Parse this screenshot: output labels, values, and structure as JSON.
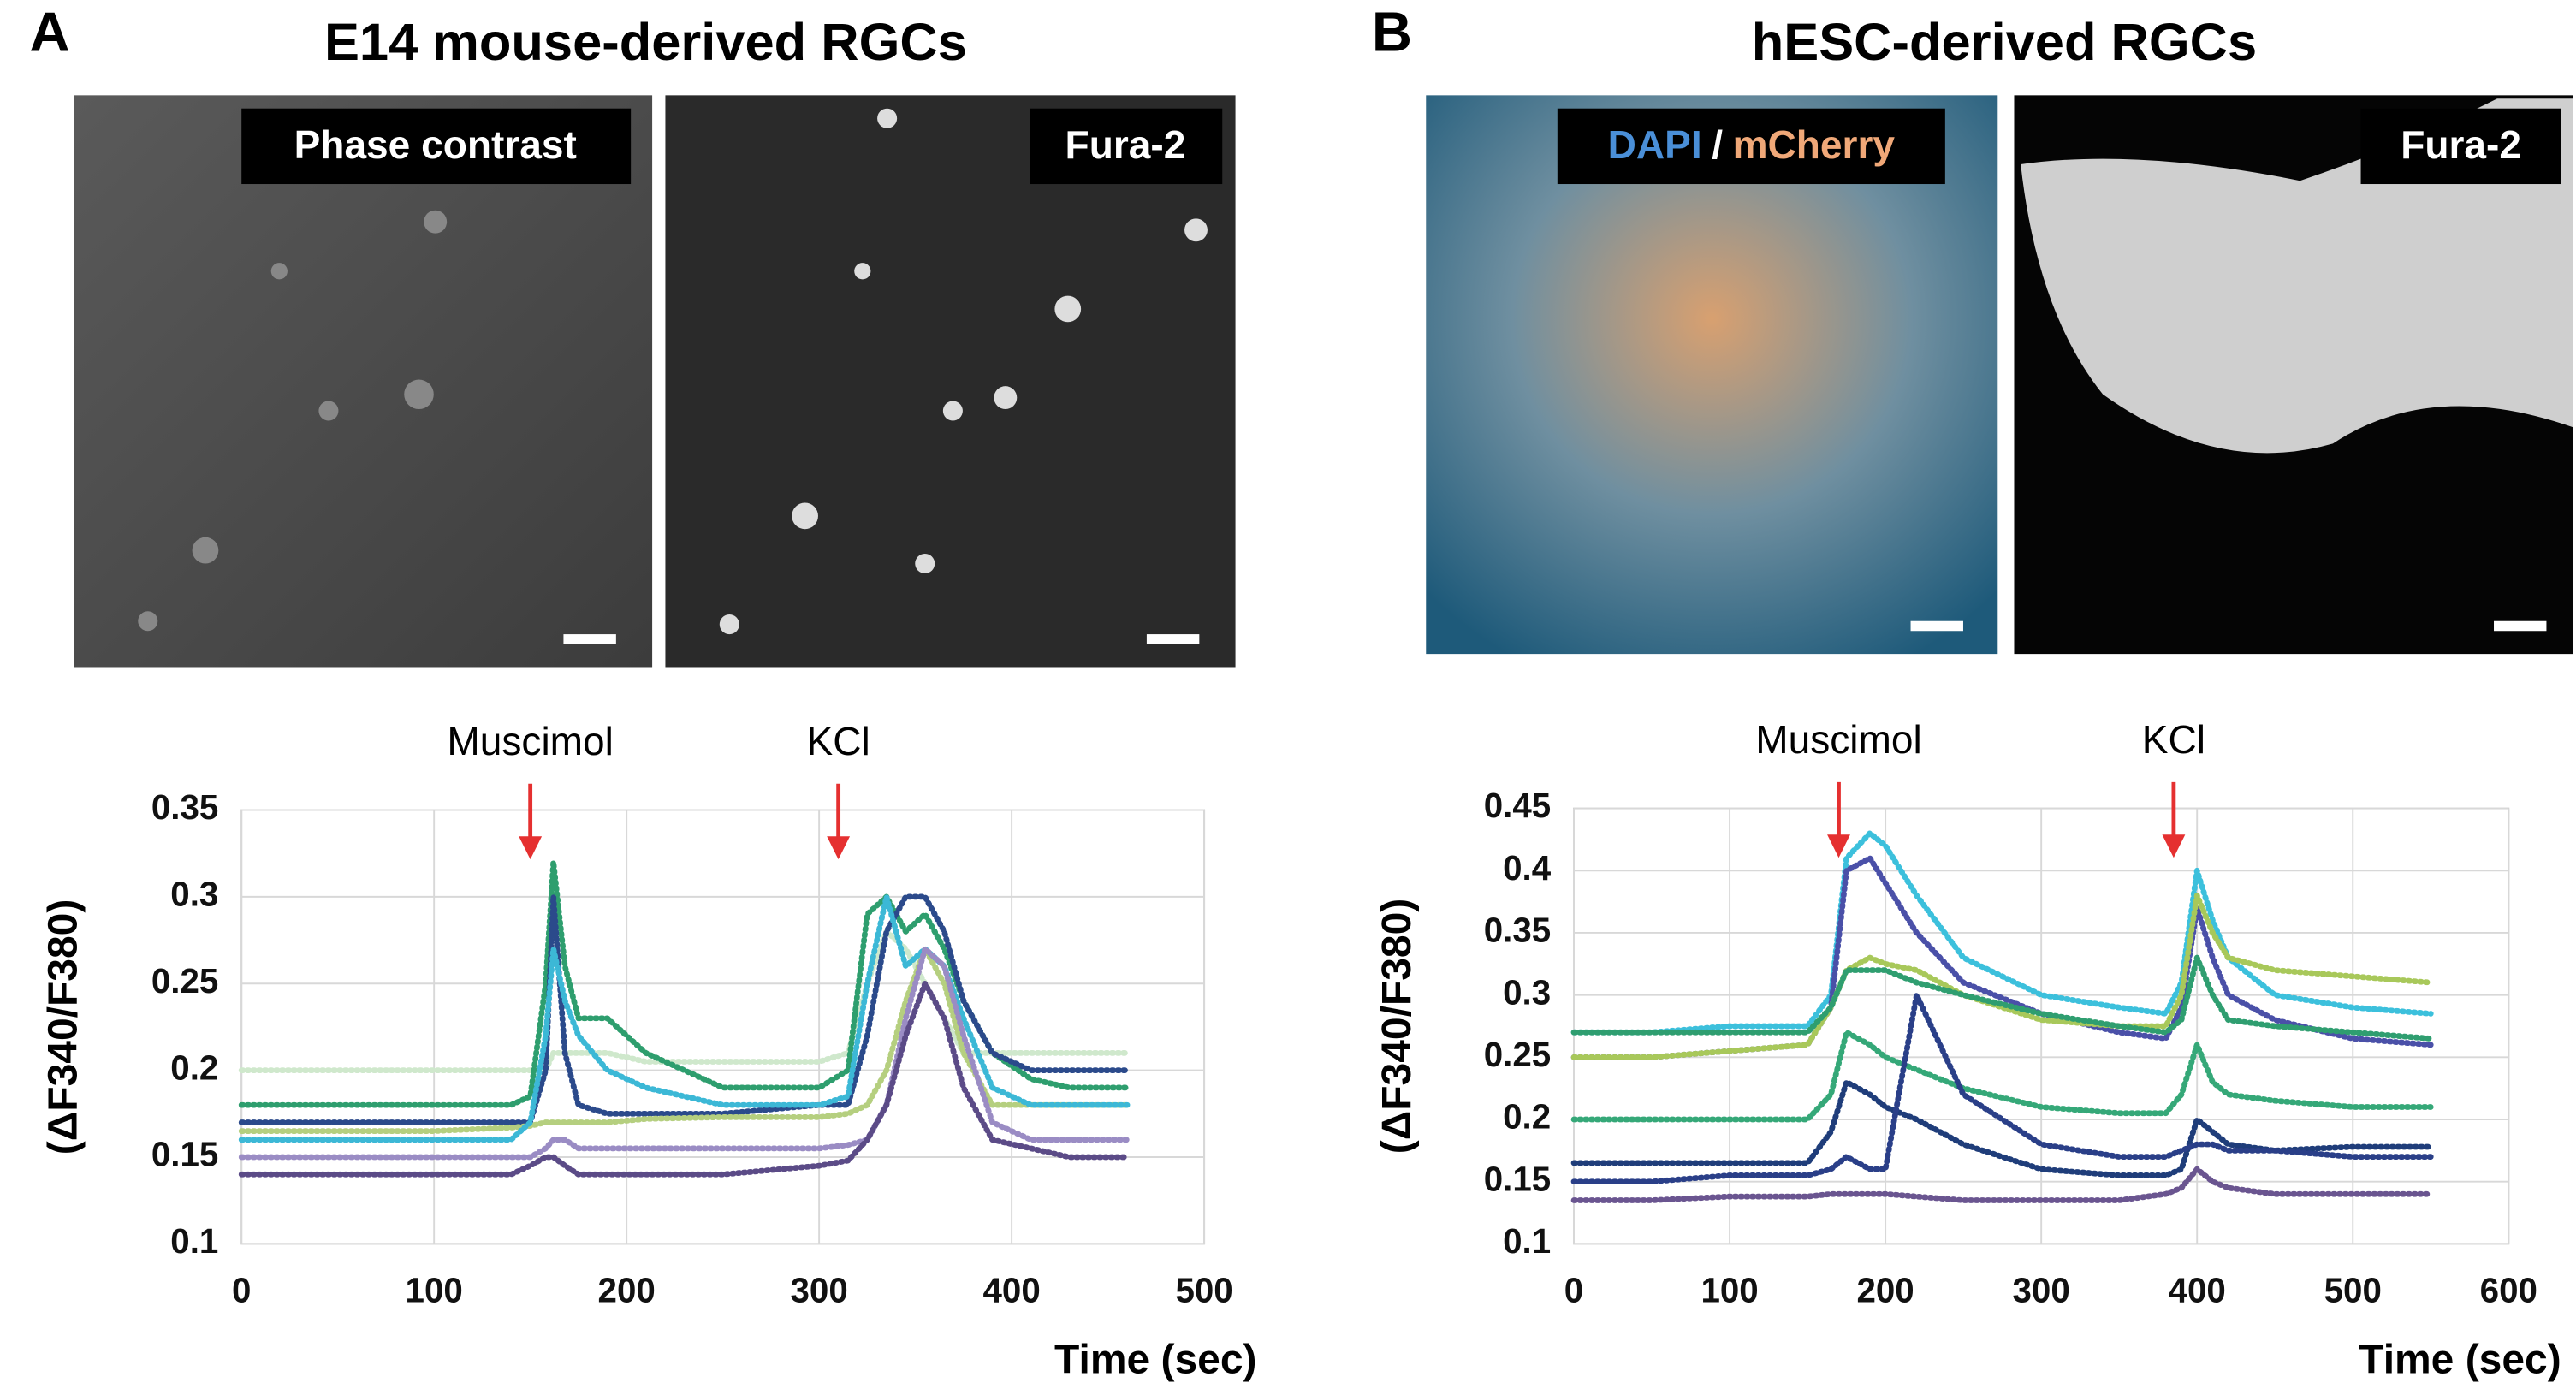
{
  "panels": [
    {
      "letter": "A",
      "title": "E14 mouse-derived RGCs",
      "images": [
        {
          "label": "Phase contrast"
        },
        {
          "label": "Fura-2"
        }
      ]
    },
    {
      "letter": "B",
      "title": "hESC-derived RGCs",
      "images": [
        {
          "label_parts": [
            "DAPI",
            "/",
            "mCherry"
          ]
        },
        {
          "label": "Fura-2"
        }
      ]
    }
  ],
  "chart_data": [
    {
      "type": "line",
      "xlabel": "Time (sec)",
      "ylabel": "(ΔF340/F380)",
      "xlim": [
        0,
        500
      ],
      "ylim": [
        0.1,
        0.35
      ],
      "xticks": [
        0,
        100,
        200,
        300,
        400,
        500
      ],
      "yticks": [
        0.1,
        0.15,
        0.2,
        0.25,
        0.3,
        0.35
      ],
      "grid": true,
      "annotations": [
        {
          "text": "Muscimol",
          "x": 150
        },
        {
          "text": "KCl",
          "x": 310
        }
      ],
      "annotation_color": "#e53030",
      "x": [
        0,
        50,
        100,
        140,
        150,
        158,
        162,
        168,
        175,
        190,
        210,
        250,
        300,
        315,
        325,
        335,
        345,
        355,
        365,
        375,
        390,
        410,
        430,
        460
      ],
      "series": [
        {
          "color": "#cfe8cc",
          "values": [
            0.2,
            0.2,
            0.2,
            0.2,
            0.2,
            0.2,
            0.21,
            0.21,
            0.21,
            0.21,
            0.205,
            0.205,
            0.205,
            0.21,
            0.25,
            0.28,
            0.27,
            0.25,
            0.23,
            0.21,
            0.21,
            0.21,
            0.21,
            0.21
          ]
        },
        {
          "color": "#2e9e6e",
          "values": [
            0.18,
            0.18,
            0.18,
            0.18,
            0.185,
            0.25,
            0.32,
            0.26,
            0.23,
            0.23,
            0.21,
            0.19,
            0.19,
            0.2,
            0.29,
            0.3,
            0.28,
            0.29,
            0.27,
            0.24,
            0.21,
            0.195,
            0.19,
            0.19
          ]
        },
        {
          "color": "#2b4a8b",
          "values": [
            0.17,
            0.17,
            0.17,
            0.17,
            0.17,
            0.2,
            0.3,
            0.21,
            0.18,
            0.175,
            0.175,
            0.175,
            0.18,
            0.18,
            0.22,
            0.28,
            0.3,
            0.3,
            0.28,
            0.24,
            0.21,
            0.2,
            0.2,
            0.2
          ]
        },
        {
          "color": "#b5cf7f",
          "values": [
            0.165,
            0.165,
            0.165,
            0.167,
            0.168,
            0.17,
            0.17,
            0.17,
            0.17,
            0.17,
            0.172,
            0.173,
            0.173,
            0.175,
            0.18,
            0.2,
            0.24,
            0.27,
            0.25,
            0.21,
            0.18,
            0.18,
            0.18,
            0.18
          ]
        },
        {
          "color": "#3cb8d6",
          "values": [
            0.16,
            0.16,
            0.16,
            0.16,
            0.17,
            0.22,
            0.27,
            0.24,
            0.22,
            0.2,
            0.19,
            0.18,
            0.18,
            0.185,
            0.25,
            0.3,
            0.26,
            0.27,
            0.26,
            0.23,
            0.19,
            0.18,
            0.18,
            0.18
          ]
        },
        {
          "color": "#9a8cc4",
          "values": [
            0.15,
            0.15,
            0.15,
            0.15,
            0.15,
            0.155,
            0.16,
            0.16,
            0.155,
            0.155,
            0.155,
            0.155,
            0.155,
            0.157,
            0.16,
            0.18,
            0.23,
            0.27,
            0.26,
            0.22,
            0.17,
            0.16,
            0.16,
            0.16
          ]
        },
        {
          "color": "#5b4b87",
          "values": [
            0.14,
            0.14,
            0.14,
            0.14,
            0.145,
            0.15,
            0.15,
            0.145,
            0.14,
            0.14,
            0.14,
            0.14,
            0.145,
            0.148,
            0.16,
            0.18,
            0.22,
            0.25,
            0.23,
            0.19,
            0.16,
            0.155,
            0.15,
            0.15
          ]
        }
      ]
    },
    {
      "type": "line",
      "xlabel": "Time (sec)",
      "ylabel": "(ΔF340/F380)",
      "xlim": [
        0,
        600
      ],
      "ylim": [
        0.1,
        0.45
      ],
      "xticks": [
        0,
        100,
        200,
        300,
        400,
        500,
        600
      ],
      "yticks": [
        0.1,
        0.15,
        0.2,
        0.25,
        0.3,
        0.35,
        0.4,
        0.45
      ],
      "grid": true,
      "annotations": [
        {
          "text": "Muscimol",
          "x": 170
        },
        {
          "text": "KCl",
          "x": 385
        }
      ],
      "annotation_color": "#e53030",
      "x": [
        0,
        50,
        100,
        150,
        165,
        175,
        190,
        200,
        220,
        250,
        300,
        350,
        380,
        390,
        400,
        410,
        420,
        450,
        500,
        550
      ],
      "series": [
        {
          "color": "#3cc0dc",
          "values": [
            0.27,
            0.27,
            0.275,
            0.275,
            0.3,
            0.41,
            0.43,
            0.42,
            0.38,
            0.33,
            0.3,
            0.29,
            0.285,
            0.31,
            0.4,
            0.36,
            0.33,
            0.3,
            0.29,
            0.285
          ]
        },
        {
          "color": "#4a50a8",
          "values": [
            0.25,
            0.25,
            0.255,
            0.26,
            0.29,
            0.4,
            0.41,
            0.39,
            0.35,
            0.31,
            0.285,
            0.27,
            0.265,
            0.29,
            0.37,
            0.33,
            0.3,
            0.28,
            0.265,
            0.26
          ]
        },
        {
          "color": "#a8c85a",
          "values": [
            0.25,
            0.25,
            0.255,
            0.26,
            0.29,
            0.32,
            0.33,
            0.325,
            0.32,
            0.3,
            0.28,
            0.275,
            0.275,
            0.3,
            0.38,
            0.35,
            0.33,
            0.32,
            0.315,
            0.31
          ]
        },
        {
          "color": "#2f9e70",
          "values": [
            0.27,
            0.27,
            0.27,
            0.27,
            0.29,
            0.32,
            0.32,
            0.32,
            0.31,
            0.3,
            0.285,
            0.275,
            0.27,
            0.28,
            0.33,
            0.3,
            0.28,
            0.275,
            0.27,
            0.265
          ]
        },
        {
          "color": "#35a878",
          "values": [
            0.2,
            0.2,
            0.2,
            0.2,
            0.22,
            0.27,
            0.26,
            0.25,
            0.24,
            0.225,
            0.21,
            0.205,
            0.205,
            0.22,
            0.26,
            0.23,
            0.22,
            0.215,
            0.21,
            0.21
          ]
        },
        {
          "color": "#1f3d7a",
          "values": [
            0.165,
            0.165,
            0.165,
            0.165,
            0.19,
            0.23,
            0.22,
            0.21,
            0.2,
            0.18,
            0.16,
            0.155,
            0.155,
            0.16,
            0.2,
            0.19,
            0.18,
            0.175,
            0.178,
            0.178
          ]
        },
        {
          "color": "#2a3f88",
          "values": [
            0.15,
            0.15,
            0.155,
            0.155,
            0.16,
            0.17,
            0.16,
            0.16,
            0.3,
            0.22,
            0.18,
            0.17,
            0.17,
            0.175,
            0.18,
            0.18,
            0.175,
            0.175,
            0.17,
            0.17
          ]
        },
        {
          "color": "#6a5590",
          "values": [
            0.135,
            0.135,
            0.138,
            0.138,
            0.14,
            0.14,
            0.14,
            0.14,
            0.138,
            0.135,
            0.135,
            0.135,
            0.14,
            0.145,
            0.16,
            0.15,
            0.145,
            0.14,
            0.14,
            0.14
          ]
        }
      ]
    }
  ]
}
